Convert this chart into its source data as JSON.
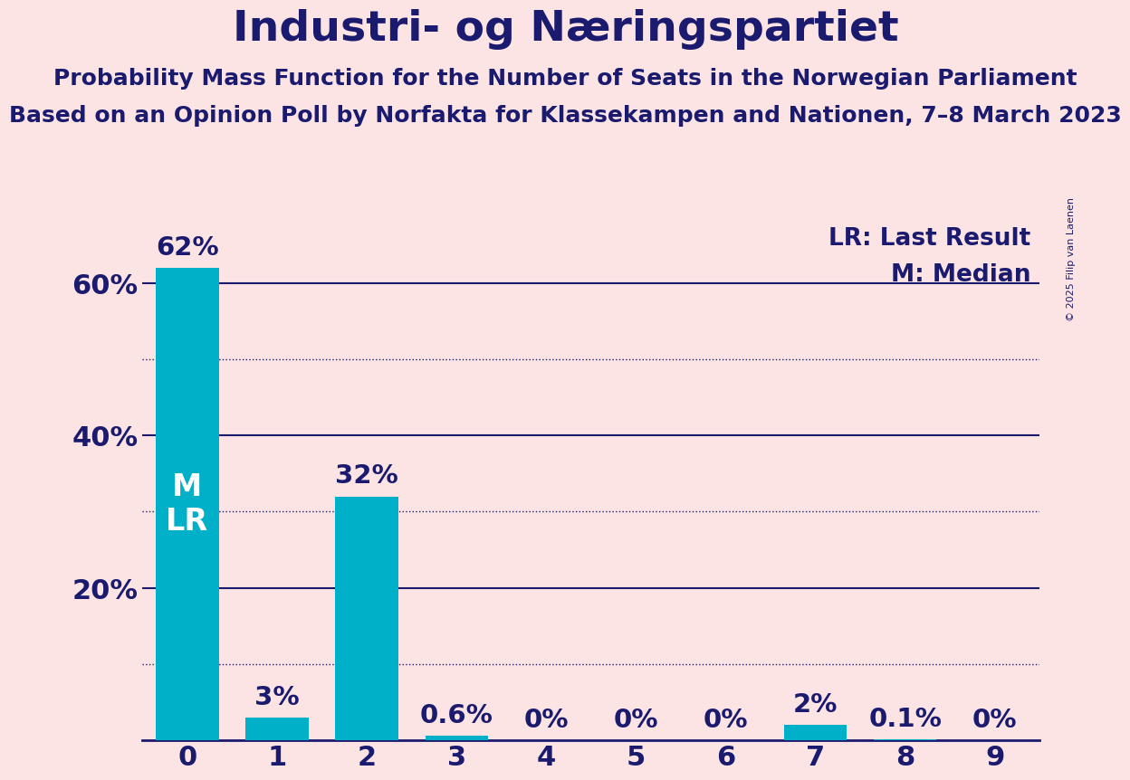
{
  "title": "Industri- og Næringspartiet",
  "subtitle1": "Probability Mass Function for the Number of Seats in the Norwegian Parliament",
  "subtitle2": "Based on an Opinion Poll by Norfakta for Klassekampen and Nationen, 7–8 March 2023",
  "copyright": "© 2025 Filip van Laenen",
  "categories": [
    0,
    1,
    2,
    3,
    4,
    5,
    6,
    7,
    8,
    9
  ],
  "values": [
    62.0,
    3.0,
    32.0,
    0.6,
    0.0,
    0.0,
    0.0,
    2.0,
    0.1,
    0.0
  ],
  "value_labels": [
    "62%",
    "3%",
    "32%",
    "0.6%",
    "0%",
    "0%",
    "0%",
    "2%",
    "0.1%",
    "0%"
  ],
  "bar_color": "#00afc8",
  "background_color": "#fce4e4",
  "text_color": "#1a1a6e",
  "title_fontsize": 34,
  "subtitle_fontsize": 18,
  "axis_tick_fontsize": 22,
  "bar_label_fontsize": 21,
  "legend_fontsize": 19,
  "ml_label_fontsize": 24,
  "median": 0,
  "last_result": 0,
  "ylim": [
    0,
    68
  ],
  "yticks": [
    0,
    20,
    40,
    60
  ],
  "ytick_labels": [
    "",
    "20%",
    "40%",
    "60%"
  ],
  "solid_gridlines": [
    20,
    40,
    60
  ],
  "dotted_gridlines": [
    10,
    30,
    50
  ],
  "legend_lr_label": "LR: Last Result",
  "legend_m_label": "M: Median",
  "copyright_fontsize": 8
}
